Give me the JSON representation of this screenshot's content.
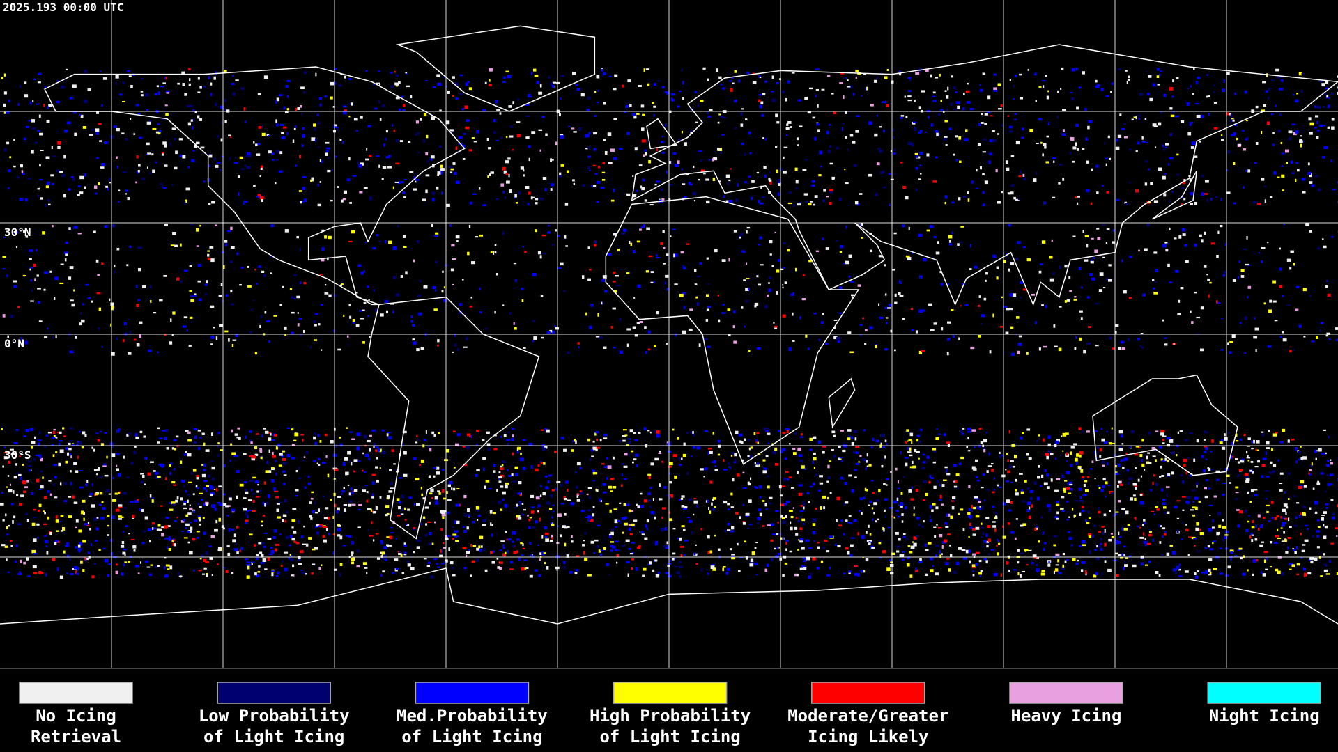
{
  "header": {
    "timestamp": "2025.193 00:00 UTC"
  },
  "map": {
    "latitude_labels": [
      "30°N",
      "0°N",
      "30°S"
    ]
  },
  "legend": {
    "items": [
      {
        "label": [
          "No Icing",
          "Retrieval"
        ],
        "color": "#f0f0f0"
      },
      {
        "label": [
          "Low Probability",
          "of Light Icing"
        ],
        "color": "#000070"
      },
      {
        "label": [
          "Med.Probability",
          "of Light Icing"
        ],
        "color": "#0000ff"
      },
      {
        "label": [
          "High Probability",
          "of Light Icing"
        ],
        "color": "#ffff00"
      },
      {
        "label": [
          "Moderate/Greater",
          "Icing Likely"
        ],
        "color": "#ff0000"
      },
      {
        "label": [
          "Heavy Icing"
        ],
        "color": "#e8a0e0"
      },
      {
        "label": [
          "Night Icing"
        ],
        "color": "#00ffff"
      }
    ]
  }
}
